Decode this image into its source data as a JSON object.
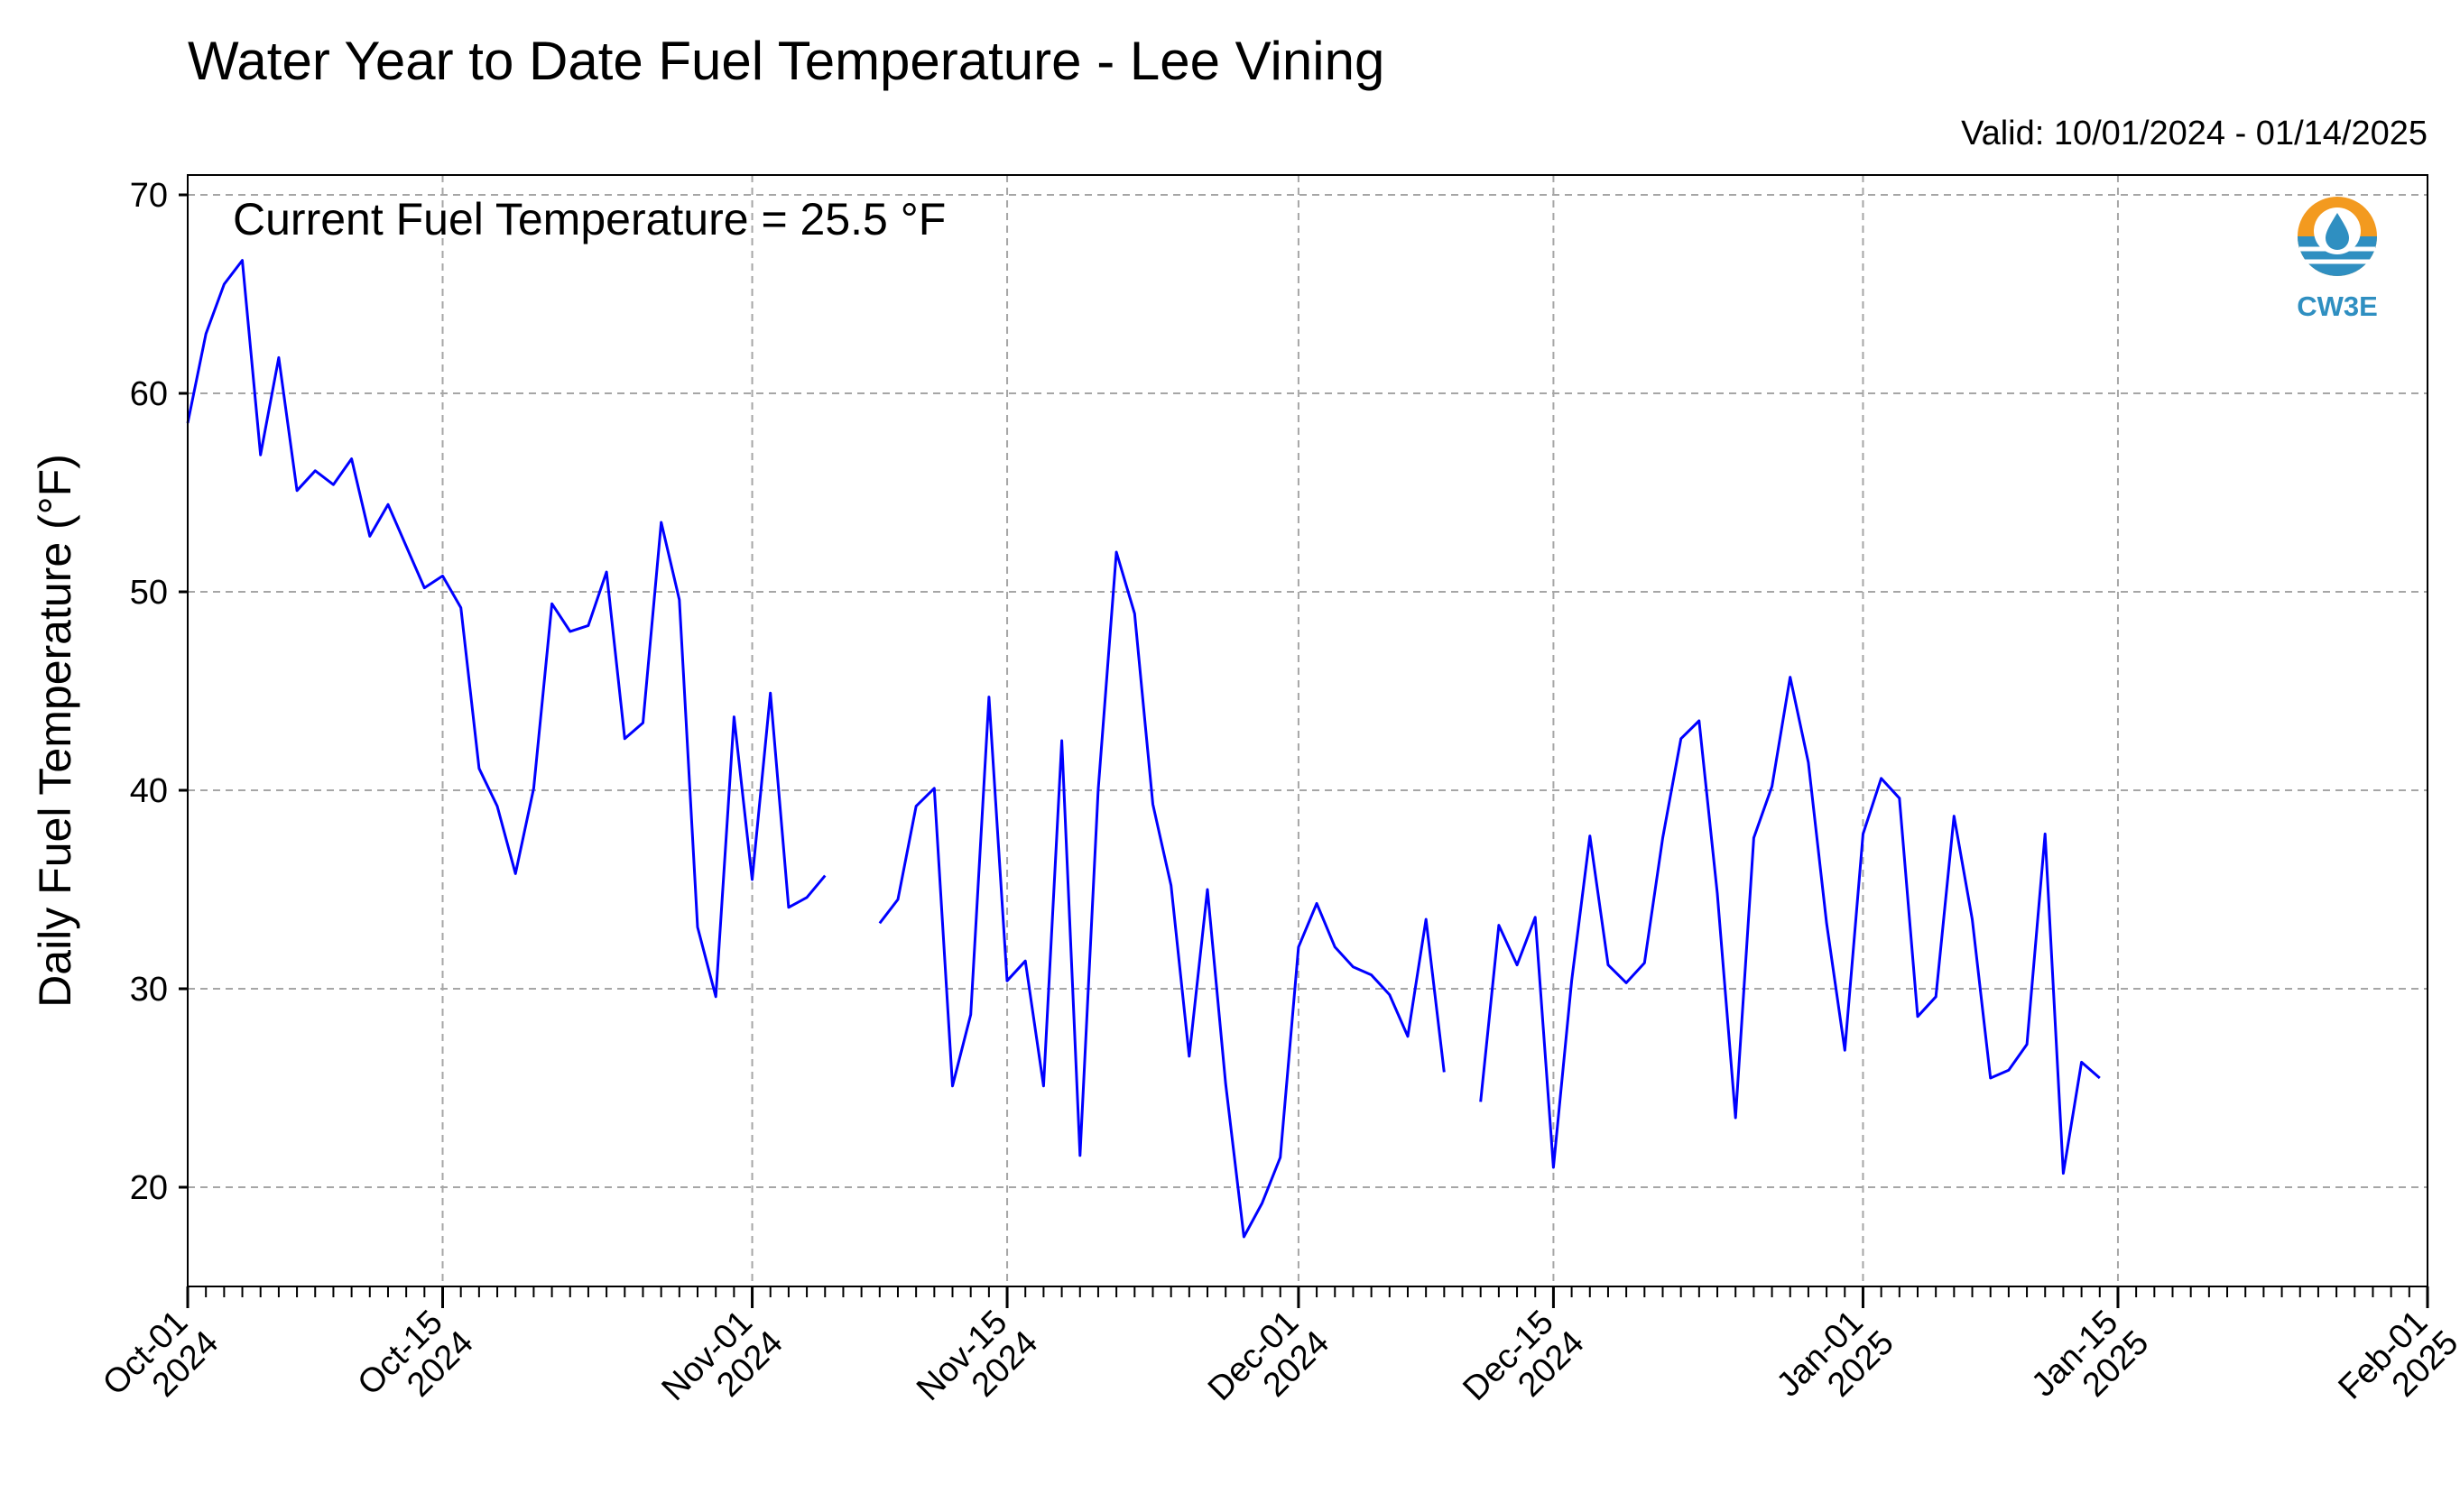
{
  "chart_data": {
    "type": "line",
    "title": "Water Year to Date Fuel Temperature - Lee Vining",
    "subtitle": "Valid: 10/01/2024 - 01/14/2025",
    "annotation": "Current Fuel Temperature = 25.5  °F",
    "ylabel": "Daily Fuel Temperature (°F)",
    "xlabel": "",
    "ylim": [
      15,
      71
    ],
    "xlim": [
      "2024-10-01",
      "2025-02-01"
    ],
    "yticks": [
      20,
      30,
      40,
      50,
      60,
      70
    ],
    "xticks": [
      {
        "date": "2024-10-01",
        "line1": "Oct-01",
        "line2": "2024"
      },
      {
        "date": "2024-10-15",
        "line1": "Oct-15",
        "line2": "2024"
      },
      {
        "date": "2024-11-01",
        "line1": "Nov-01",
        "line2": "2024"
      },
      {
        "date": "2024-11-15",
        "line1": "Nov-15",
        "line2": "2024"
      },
      {
        "date": "2024-12-01",
        "line1": "Dec-01",
        "line2": "2024"
      },
      {
        "date": "2024-12-15",
        "line1": "Dec-15",
        "line2": "2024"
      },
      {
        "date": "2025-01-01",
        "line1": "Jan-01",
        "line2": "2025"
      },
      {
        "date": "2025-01-15",
        "line1": "Jan-15",
        "line2": "2025"
      },
      {
        "date": "2025-02-01",
        "line1": "Feb-01",
        "line2": "2025"
      }
    ],
    "grid": true,
    "series": [
      {
        "color": "#0000ff",
        "points": [
          [
            "2024-10-01",
            58.5
          ],
          [
            "2024-10-02",
            63.0
          ],
          [
            "2024-10-03",
            65.5
          ],
          [
            "2024-10-04",
            66.7
          ],
          [
            "2024-10-05",
            56.9
          ],
          [
            "2024-10-06",
            61.8
          ],
          [
            "2024-10-07",
            55.1
          ],
          [
            "2024-10-08",
            56.1
          ],
          [
            "2024-10-09",
            55.4
          ],
          [
            "2024-10-10",
            56.7
          ],
          [
            "2024-10-11",
            52.8
          ],
          [
            "2024-10-12",
            54.4
          ],
          [
            "2024-10-13",
            52.3
          ],
          [
            "2024-10-14",
            50.2
          ],
          [
            "2024-10-15",
            50.8
          ],
          [
            "2024-10-16",
            49.2
          ],
          [
            "2024-10-17",
            41.1
          ],
          [
            "2024-10-18",
            39.2
          ],
          [
            "2024-10-19",
            35.8
          ],
          [
            "2024-10-20",
            40.1
          ],
          [
            "2024-10-21",
            49.4
          ],
          [
            "2024-10-22",
            48.0
          ],
          [
            "2024-10-23",
            48.3
          ],
          [
            "2024-10-24",
            51.0
          ],
          [
            "2024-10-25",
            42.6
          ],
          [
            "2024-10-26",
            43.4
          ],
          [
            "2024-10-27",
            53.5
          ],
          [
            "2024-10-28",
            49.6
          ],
          [
            "2024-10-29",
            33.1
          ],
          [
            "2024-10-30",
            29.6
          ],
          [
            "2024-10-31",
            43.7
          ],
          [
            "2024-11-01",
            35.5
          ],
          [
            "2024-11-02",
            44.9
          ],
          [
            "2024-11-03",
            34.1
          ],
          [
            "2024-11-04",
            34.6
          ],
          [
            "2024-11-05",
            35.7
          ],
          [
            "2024-11-06",
            null
          ],
          [
            "2024-11-07",
            null
          ],
          [
            "2024-11-08",
            33.3
          ],
          [
            "2024-11-09",
            34.5
          ],
          [
            "2024-11-10",
            39.2
          ],
          [
            "2024-11-11",
            40.1
          ],
          [
            "2024-11-12",
            25.1
          ],
          [
            "2024-11-13",
            28.7
          ],
          [
            "2024-11-14",
            44.7
          ],
          [
            "2024-11-15",
            30.4
          ],
          [
            "2024-11-16",
            31.4
          ],
          [
            "2024-11-17",
            25.1
          ],
          [
            "2024-11-18",
            42.5
          ],
          [
            "2024-11-19",
            21.6
          ],
          [
            "2024-11-20",
            40.0
          ],
          [
            "2024-11-21",
            52.0
          ],
          [
            "2024-11-22",
            48.9
          ],
          [
            "2024-11-23",
            39.3
          ],
          [
            "2024-11-24",
            35.2
          ],
          [
            "2024-11-25",
            26.6
          ],
          [
            "2024-11-26",
            35.0
          ],
          [
            "2024-11-27",
            25.2
          ],
          [
            "2024-11-28",
            17.5
          ],
          [
            "2024-11-29",
            19.2
          ],
          [
            "2024-11-30",
            21.5
          ],
          [
            "2024-12-01",
            32.1
          ],
          [
            "2024-12-02",
            34.3
          ],
          [
            "2024-12-03",
            32.1
          ],
          [
            "2024-12-04",
            31.1
          ],
          [
            "2024-12-05",
            30.7
          ],
          [
            "2024-12-06",
            29.7
          ],
          [
            "2024-12-07",
            27.6
          ],
          [
            "2024-12-08",
            33.5
          ],
          [
            "2024-12-09",
            25.8
          ],
          [
            "2024-12-10",
            null
          ],
          [
            "2024-12-11",
            24.3
          ],
          [
            "2024-12-12",
            33.2
          ],
          [
            "2024-12-13",
            31.2
          ],
          [
            "2024-12-14",
            33.6
          ],
          [
            "2024-12-15",
            21.0
          ],
          [
            "2024-12-16",
            30.4
          ],
          [
            "2024-12-17",
            37.7
          ],
          [
            "2024-12-18",
            31.2
          ],
          [
            "2024-12-19",
            30.3
          ],
          [
            "2024-12-20",
            31.3
          ],
          [
            "2024-12-21",
            37.6
          ],
          [
            "2024-12-22",
            42.6
          ],
          [
            "2024-12-23",
            43.5
          ],
          [
            "2024-12-24",
            34.8
          ],
          [
            "2024-12-25",
            23.5
          ],
          [
            "2024-12-26",
            37.6
          ],
          [
            "2024-12-27",
            40.2
          ],
          [
            "2024-12-28",
            45.7
          ],
          [
            "2024-12-29",
            41.4
          ],
          [
            "2024-12-30",
            33.3
          ],
          [
            "2024-12-31",
            26.9
          ],
          [
            "2025-01-01",
            37.8
          ],
          [
            "2025-01-02",
            40.6
          ],
          [
            "2025-01-03",
            39.6
          ],
          [
            "2025-01-04",
            28.6
          ],
          [
            "2025-01-05",
            29.6
          ],
          [
            "2025-01-06",
            38.7
          ],
          [
            "2025-01-07",
            33.5
          ],
          [
            "2025-01-08",
            25.5
          ],
          [
            "2025-01-09",
            25.9
          ],
          [
            "2025-01-10",
            27.2
          ],
          [
            "2025-01-11",
            37.8
          ],
          [
            "2025-01-12",
            20.7
          ],
          [
            "2025-01-13",
            26.3
          ],
          [
            "2025-01-14",
            25.5
          ]
        ]
      }
    ]
  },
  "logo": {
    "text": "CW3E",
    "text_color": "#2f8fc1",
    "ring_color": "#f39a1f",
    "drop_color": "#2f8fc1",
    "icon": "water-drop-icon"
  }
}
